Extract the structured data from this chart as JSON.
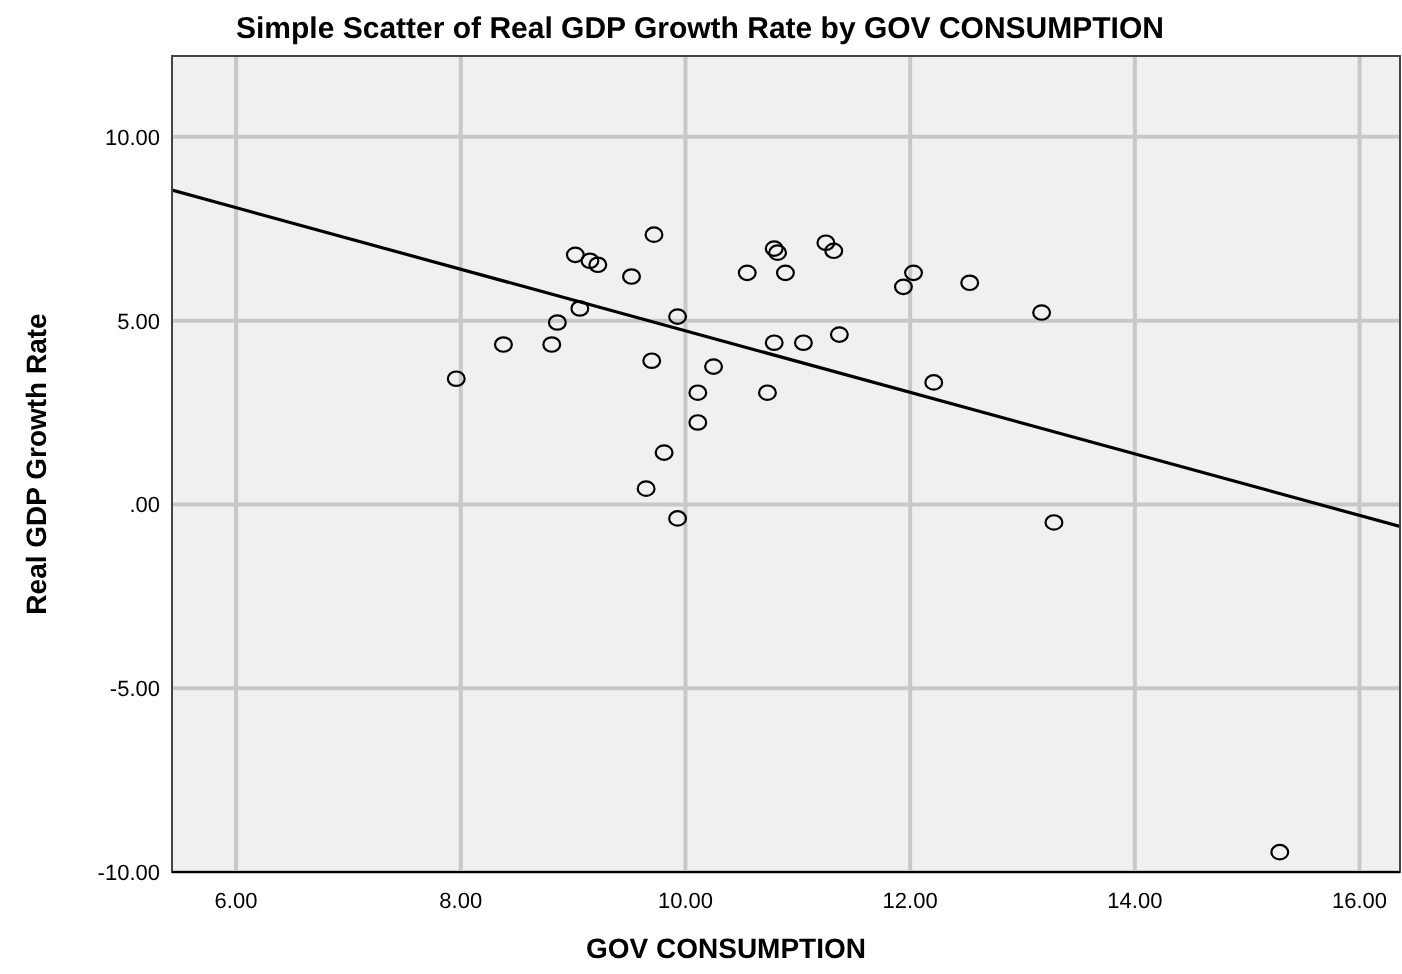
{
  "chart_data": {
    "type": "scatter",
    "title": "Simple Scatter of Real GDP Growth Rate by GOV CONSUMPTION",
    "xlabel": "GOV CONSUMPTION",
    "ylabel": "Real GDP Growth Rate",
    "xlim": [
      5.43,
      16.36
    ],
    "ylim": [
      -10,
      12.2
    ],
    "xticks": [
      {
        "value": 6,
        "label": "6.00"
      },
      {
        "value": 8,
        "label": "8.00"
      },
      {
        "value": 10,
        "label": "10.00"
      },
      {
        "value": 12,
        "label": "12.00"
      },
      {
        "value": 14,
        "label": "14.00"
      },
      {
        "value": 16,
        "label": "16.00"
      }
    ],
    "yticks": [
      {
        "value": -10,
        "label": "-10.00"
      },
      {
        "value": -5,
        "label": "-5.00"
      },
      {
        "value": 0,
        "label": ".00"
      },
      {
        "value": 5,
        "label": "5.00"
      },
      {
        "value": 10,
        "label": "10.00"
      }
    ],
    "grid": true,
    "marker": "circle",
    "series": [
      {
        "color": "#000000",
        "x": [
          7.96,
          8.38,
          8.81,
          8.86,
          9.06,
          9.02,
          9.15,
          9.22,
          9.52,
          9.72,
          9.7,
          9.93,
          9.65,
          9.81,
          9.93,
          10.11,
          10.11,
          10.25,
          10.79,
          10.82,
          10.55,
          10.89,
          11.25,
          11.32,
          12.03,
          11.94,
          12.53,
          13.17,
          10.79,
          11.05,
          11.37,
          10.73,
          12.21,
          13.28,
          15.29
        ],
        "values": [
          3.42,
          4.35,
          4.35,
          4.95,
          5.33,
          6.79,
          6.63,
          6.52,
          6.2,
          7.34,
          3.91,
          5.11,
          0.43,
          1.41,
          -0.38,
          3.04,
          2.23,
          3.75,
          6.96,
          6.85,
          6.3,
          6.3,
          7.12,
          6.9,
          6.3,
          5.92,
          6.03,
          5.22,
          4.4,
          4.4,
          4.62,
          3.04,
          3.32,
          -0.49,
          -9.46
        ]
      },
      {
        "type": "line",
        "color": "#000000",
        "x": [
          5.43,
          16.36
        ],
        "values": [
          8.55,
          -0.6
        ],
        "marker": "none"
      }
    ]
  }
}
